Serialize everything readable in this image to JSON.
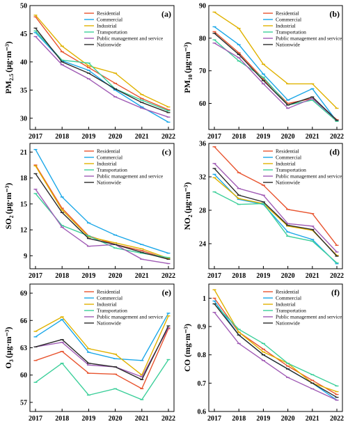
{
  "legend_labels": [
    "Residential",
    "Commercial",
    "Industrial",
    "Transportation",
    "Public management and service",
    "Nationwide"
  ],
  "colors": {
    "Residential": "#e8542f",
    "Commercial": "#1aa7e8",
    "Industrial": "#e0b200",
    "Transportation": "#3ccf9a",
    "Public management and service": "#a05bb5",
    "Nationwide": "#2b2b2b"
  },
  "chart_data": [
    {
      "type": "line",
      "panel_label": "(a)",
      "ylabel": {
        "main": "PM",
        "sub": "2.5",
        "unit": "(μg·m⁻³)"
      },
      "categories": [
        "2017",
        "2018",
        "2019",
        "2020",
        "2021",
        "2022"
      ],
      "ylim": [
        28,
        50
      ],
      "yticks": [
        30,
        35,
        40,
        45,
        50
      ],
      "series": [
        {
          "name": "Residential",
          "values": [
            48.0,
            41.8,
            39.0,
            36.2,
            33.5,
            31.5
          ]
        },
        {
          "name": "Commercial",
          "values": [
            45.2,
            40.2,
            38.5,
            35.0,
            32.0,
            29.3
          ]
        },
        {
          "name": "Industrial",
          "values": [
            48.3,
            42.8,
            39.3,
            38.0,
            34.2,
            32.0
          ]
        },
        {
          "name": "Transportation",
          "values": [
            45.5,
            40.3,
            39.8,
            35.2,
            33.2,
            31.3
          ]
        },
        {
          "name": "Public management and service",
          "values": [
            44.5,
            39.5,
            37.0,
            33.8,
            31.8,
            30.2
          ]
        },
        {
          "name": "Nationwide",
          "values": [
            46.0,
            40.0,
            38.0,
            35.2,
            32.8,
            31.0
          ]
        }
      ]
    },
    {
      "type": "line",
      "panel_label": "(b)",
      "ylabel": {
        "main": "PM",
        "sub": "10",
        "unit": "(μg·m⁻³)"
      },
      "categories": [
        "2017",
        "2018",
        "2019",
        "2020",
        "2021",
        "2022"
      ],
      "ylim": [
        52,
        90
      ],
      "yticks": [
        60,
        70,
        80,
        90
      ],
      "series": [
        {
          "name": "Residential",
          "values": [
            82.0,
            75.5,
            67.5,
            60.0,
            61.5,
            55.0
          ]
        },
        {
          "name": "Commercial",
          "values": [
            83.5,
            78.0,
            69.0,
            61.0,
            64.5,
            54.5
          ]
        },
        {
          "name": "Industrial",
          "values": [
            88.0,
            83.0,
            72.0,
            66.0,
            66.0,
            58.5
          ]
        },
        {
          "name": "Transportation",
          "values": [
            79.5,
            73.0,
            68.0,
            59.5,
            61.0,
            54.5
          ]
        },
        {
          "name": "Public management and service",
          "values": [
            78.5,
            74.0,
            66.0,
            58.5,
            61.5,
            54.8
          ]
        },
        {
          "name": "Nationwide",
          "values": [
            81.5,
            75.0,
            67.0,
            59.5,
            62.0,
            54.8
          ]
        }
      ]
    },
    {
      "type": "line",
      "panel_label": "(c)",
      "ylabel": {
        "main": "SO",
        "sub": "2",
        "unit": "(μg·m⁻³)"
      },
      "categories": [
        "2017",
        "2018",
        "2019",
        "2020",
        "2021",
        "2022"
      ],
      "ylim": [
        7.5,
        22
      ],
      "yticks": [
        9,
        12,
        15,
        18,
        21
      ],
      "series": [
        {
          "name": "Residential",
          "values": [
            19.5,
            14.5,
            11.3,
            10.3,
            9.6,
            8.6
          ]
        },
        {
          "name": "Commercial",
          "values": [
            21.3,
            15.8,
            12.8,
            11.4,
            10.3,
            9.3
          ]
        },
        {
          "name": "Industrial",
          "values": [
            19.4,
            14.3,
            11.2,
            10.5,
            9.8,
            8.7
          ]
        },
        {
          "name": "Transportation",
          "values": [
            16.2,
            12.5,
            11.3,
            9.9,
            9.3,
            8.8
          ]
        },
        {
          "name": "Public management and service",
          "values": [
            16.7,
            12.3,
            10.1,
            10.3,
            8.6,
            8.1
          ]
        },
        {
          "name": "Nationwide",
          "values": [
            18.5,
            14.0,
            11.0,
            10.3,
            9.4,
            8.6
          ]
        }
      ]
    },
    {
      "type": "line",
      "panel_label": "(d)",
      "ylabel": {
        "main": "NO",
        "sub": "2",
        "unit": "(μg·m⁻³)"
      },
      "categories": [
        "2017",
        "2018",
        "2019",
        "2020",
        "2021",
        "2022"
      ],
      "ylim": [
        21,
        36
      ],
      "yticks": [
        24,
        28,
        32,
        36
      ],
      "series": [
        {
          "name": "Residential",
          "values": [
            35.6,
            32.5,
            31.0,
            28.1,
            27.6,
            23.8
          ]
        },
        {
          "name": "Commercial",
          "values": [
            32.3,
            29.3,
            28.7,
            25.4,
            24.5,
            21.6
          ]
        },
        {
          "name": "Industrial",
          "values": [
            31.9,
            29.4,
            28.8,
            26.1,
            25.6,
            22.6
          ]
        },
        {
          "name": "Transportation",
          "values": [
            30.2,
            28.7,
            28.8,
            24.9,
            24.3,
            21.7
          ]
        },
        {
          "name": "Public management and service",
          "values": [
            33.6,
            30.6,
            29.8,
            26.4,
            26.1,
            23.0
          ]
        },
        {
          "name": "Nationwide",
          "values": [
            33.0,
            29.8,
            29.0,
            26.2,
            25.7,
            22.5
          ]
        }
      ]
    },
    {
      "type": "line",
      "panel_label": "(e)",
      "ylabel": {
        "main": "O",
        "sub": "3",
        "unit": "(μg·m⁻³)"
      },
      "categories": [
        "2017",
        "2018",
        "2019",
        "2020",
        "2021",
        "2022"
      ],
      "ylim": [
        56,
        70
      ],
      "yticks": [
        57,
        60,
        63,
        66,
        69
      ],
      "series": [
        {
          "name": "Residential",
          "values": [
            61.6,
            62.6,
            60.2,
            60.1,
            58.5,
            65.1
          ]
        },
        {
          "name": "Commercial",
          "values": [
            64.2,
            66.1,
            62.5,
            61.8,
            61.6,
            66.8
          ]
        },
        {
          "name": "Industrial",
          "values": [
            64.8,
            66.4,
            62.9,
            62.3,
            60.0,
            66.5
          ]
        },
        {
          "name": "Transportation",
          "values": [
            59.2,
            61.3,
            57.8,
            58.5,
            57.3,
            61.7
          ]
        },
        {
          "name": "Public management and service",
          "values": [
            63.1,
            63.6,
            61.1,
            60.9,
            59.8,
            65.2
          ]
        },
        {
          "name": "Nationwide",
          "values": [
            63.1,
            63.9,
            61.3,
            60.9,
            59.5,
            65.4
          ]
        }
      ]
    },
    {
      "type": "line",
      "panel_label": "(f)",
      "ylabel": {
        "main": "CO",
        "sub": "",
        "unit": "(mg·m⁻³)"
      },
      "categories": [
        "2017",
        "2018",
        "2019",
        "2020",
        "2021",
        "2022"
      ],
      "ylim": [
        0.6,
        1.05
      ],
      "yticks": [
        0.6,
        0.7,
        0.8,
        0.9,
        1.0
      ],
      "series": [
        {
          "name": "Residential",
          "values": [
            1.0,
            0.88,
            0.82,
            0.76,
            0.71,
            0.66
          ]
        },
        {
          "name": "Commercial",
          "values": [
            0.99,
            0.87,
            0.8,
            0.75,
            0.7,
            0.64
          ]
        },
        {
          "name": "Industrial",
          "values": [
            1.03,
            0.88,
            0.81,
            0.77,
            0.7,
            0.67
          ]
        },
        {
          "name": "Transportation",
          "values": [
            0.98,
            0.89,
            0.84,
            0.77,
            0.73,
            0.69
          ]
        },
        {
          "name": "Public management and service",
          "values": [
            0.95,
            0.84,
            0.78,
            0.72,
            0.68,
            0.64
          ]
        },
        {
          "name": "Nationwide",
          "values": [
            0.98,
            0.87,
            0.8,
            0.75,
            0.7,
            0.65
          ]
        }
      ]
    }
  ]
}
